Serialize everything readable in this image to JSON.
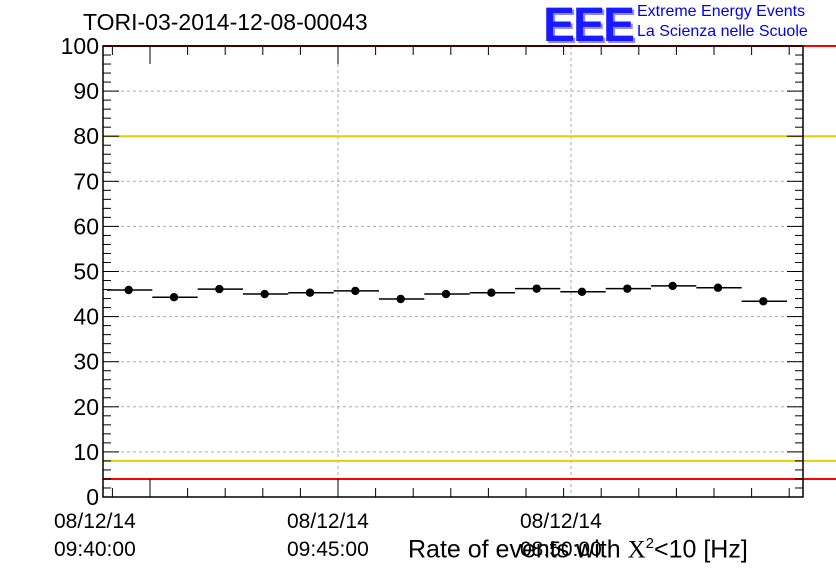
{
  "chart_data": {
    "type": "scatter",
    "title": "TORI-03-2014-12-08-00043",
    "logo": {
      "letters": "EEE",
      "line1": "Extreme Energy Events",
      "line2": "La Scienza nelle Scuole"
    },
    "xlabel": {
      "prefix": "Rate of events with ",
      "symbol": "X",
      "sup": "2",
      "suffix": "<10 [Hz]"
    },
    "ylabel": "",
    "ylim": [
      0,
      100
    ],
    "y_ticks": [
      "0",
      "10",
      "20",
      "30",
      "40",
      "50",
      "60",
      "70",
      "80",
      "90",
      "100"
    ],
    "x_tick_labels": [
      {
        "date": "08/12/14",
        "time": "09:40:00"
      },
      {
        "date": "08/12/14",
        "time": "09:45:00"
      },
      {
        "date": "08/12/14",
        "time": "08:50:00"
      }
    ],
    "grid": true,
    "reference_lines": [
      {
        "y": 100,
        "color": "#ff0000"
      },
      {
        "y": 80,
        "color": "#f0c800"
      },
      {
        "y": 8,
        "color": "#f0c800"
      },
      {
        "y": 4,
        "color": "#ff0000"
      }
    ],
    "series": [
      {
        "values": [
          45.9,
          44.3,
          46.1,
          45.0,
          45.3,
          45.7,
          43.9,
          45.0,
          45.3,
          46.2,
          45.5,
          46.2,
          46.8,
          46.4,
          43.4
        ]
      }
    ]
  }
}
